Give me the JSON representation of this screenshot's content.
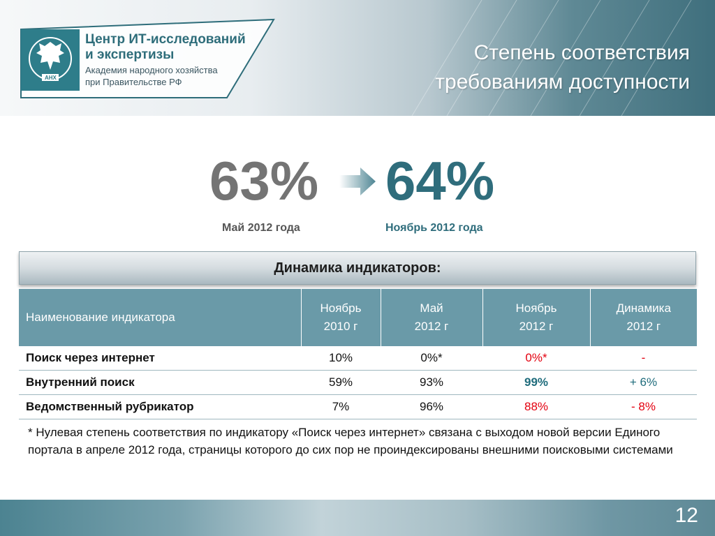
{
  "logo": {
    "line1": "Центр ИТ-исследований",
    "line2": "и экспертизы",
    "line3": "Академия народного хозяйства",
    "line4": "при Правительстве РФ",
    "emblem_text": "АНХ",
    "emblem_icon": "double-headed-eagle-emblem"
  },
  "title": {
    "line1": "Степень соответствия",
    "line2": "требованиям доступности"
  },
  "comparison": {
    "old_value": "63%",
    "old_label": "Май 2012 года",
    "new_value": "64%",
    "new_label": "Ноябрь 2012 года",
    "arrow_icon": "arrow-right-icon"
  },
  "section_title": "Динамика индикаторов:",
  "table": {
    "headers": [
      {
        "line1": "Наименование индикатора",
        "line2": ""
      },
      {
        "line1": "Ноябрь",
        "line2": "2010 г"
      },
      {
        "line1": "Май",
        "line2": "2012 г"
      },
      {
        "line1": "Ноябрь",
        "line2": "2012 г"
      },
      {
        "line1": "Динамика",
        "line2": "2012 г"
      }
    ],
    "rows": [
      {
        "name": "Поиск через интернет",
        "nov2010": "10%",
        "may2012": "0%*",
        "nov2012": "0%*",
        "dynamics": "-"
      },
      {
        "name": "Внутренний поиск",
        "nov2010": "59%",
        "may2012": "93%",
        "nov2012": "99%",
        "dynamics": "+ 6%"
      },
      {
        "name": "Ведомственный рубрикатор",
        "nov2010": "7%",
        "may2012": "96%",
        "nov2012": "88%",
        "dynamics": "- 8%"
      }
    ]
  },
  "footnote": "* Нулевая степень соответствия по индикатору «Поиск через интернет» связана с выходом новой версии Единого портала в апреле 2012 года, страницы которого до сих пор не проиндексированы внешними поисковыми системами",
  "page_number": "12",
  "colors": {
    "accent": "#2f6d7c",
    "table_header": "#6a9aa8",
    "negative": "#e3000f",
    "old_value": "#747474"
  }
}
